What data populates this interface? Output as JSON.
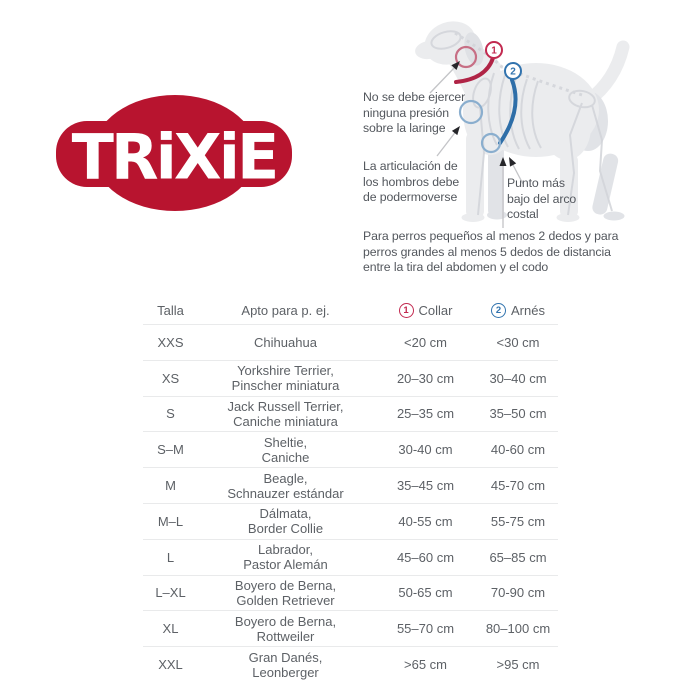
{
  "brand": {
    "logo_text": "TRiXiE",
    "logo_color": "#b8142f"
  },
  "diagram": {
    "notes": {
      "larynx": [
        "No se debe ejercer",
        "ninguna presión",
        "sobre la laringe"
      ],
      "shoulder": [
        "La articulación de",
        "los hombros debe",
        "de podermoverse"
      ],
      "rib": [
        "Punto más",
        "bajo del arco",
        "costal"
      ],
      "belly": [
        "Para perros pequeños al menos 2 dedos y para",
        "perros grandes al menos 5 dedos de distancia",
        "entre la tira del abdomen y el codo"
      ]
    },
    "markers": {
      "collar": {
        "number": "1",
        "color": "#c22a50"
      },
      "harness": {
        "number": "2",
        "color": "#3173ae"
      }
    }
  },
  "table": {
    "headers": {
      "size": "Talla",
      "breeds": "Apto para p. ej.",
      "collar": "Collar",
      "harness": "Arnés"
    },
    "rows": [
      {
        "size": "XXS",
        "breeds": [
          "Chihuahua"
        ],
        "collar": "<20 cm",
        "harness": "<30 cm"
      },
      {
        "size": "XS",
        "breeds": [
          "Yorkshire Terrier,",
          "Pinscher miniatura"
        ],
        "collar": "20–30 cm",
        "harness": "30–40 cm"
      },
      {
        "size": "S",
        "breeds": [
          "Jack Russell Terrier,",
          "Caniche miniatura"
        ],
        "collar": "25–35 cm",
        "harness": "35–50 cm"
      },
      {
        "size": "S–M",
        "breeds": [
          "Sheltie,",
          "Caniche"
        ],
        "collar": "30-40 cm",
        "harness": "40-60 cm"
      },
      {
        "size": "M",
        "breeds": [
          "Beagle,",
          "Schnauzer estándar"
        ],
        "collar": "35–45 cm",
        "harness": "45-70 cm"
      },
      {
        "size": "M–L",
        "breeds": [
          "Dálmata,",
          "Border Collie"
        ],
        "collar": "40-55 cm",
        "harness": "55-75 cm"
      },
      {
        "size": "L",
        "breeds": [
          "Labrador,",
          "Pastor Alemán"
        ],
        "collar": "45–60 cm",
        "harness": "65–85 cm"
      },
      {
        "size": "L–XL",
        "breeds": [
          "Boyero de Berna,",
          "Golden Retriever"
        ],
        "collar": "50-65 cm",
        "harness": "70-90 cm"
      },
      {
        "size": "XL",
        "breeds": [
          "Boyero de Berna,",
          "Rottweiler"
        ],
        "collar": "55–70 cm",
        "harness": "80–100 cm"
      },
      {
        "size": "XXL",
        "breeds": [
          "Gran Danés,",
          "Leonberger"
        ],
        "collar": ">65 cm",
        "harness": ">95 cm"
      }
    ]
  }
}
